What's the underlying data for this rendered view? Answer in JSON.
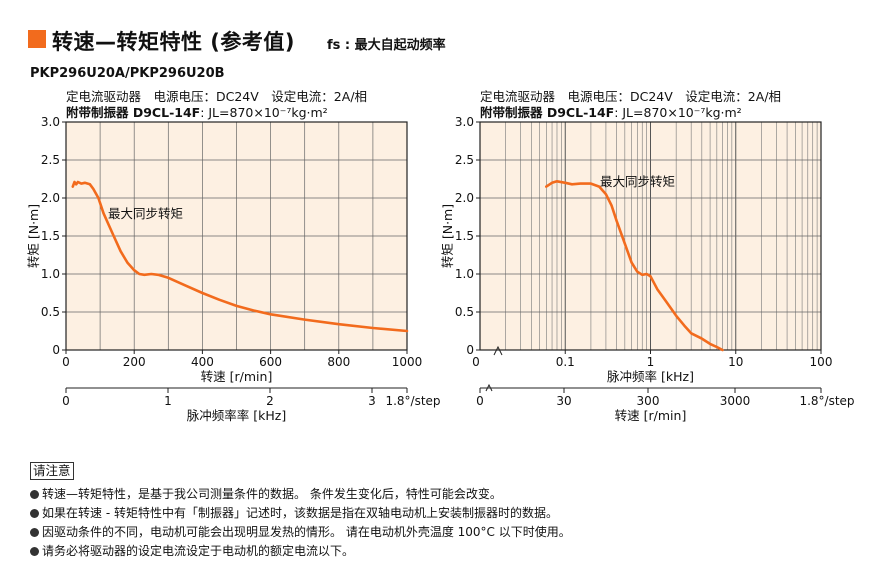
{
  "header": {
    "title": "转速—转矩特性 (参考值)",
    "subtitle": "fs : 最大自起动频率",
    "model": "PKP296U20A/PKP296U20B"
  },
  "conditions": {
    "line1": "定电流驱动器　电源电压：DC24V　设定电流：2A/相",
    "line2_bold": "附带制振器 D9CL-14F",
    "line2_rest": ":  JL=870×10⁻⁷kg·m²"
  },
  "notes": {
    "heading": "请注意",
    "items": [
      "转速—转矩特性，是基于我公司测量条件的数据。 条件发生变化后，特性可能会改变。",
      "如果在转速 - 转矩特性中有「制振器」记述时，该数据是指在双轴电动机上安装制振器时的数据。",
      "因驱动条件的不同，电动机可能会出现明显发热的情形。 请在电动机外壳温度 100°C 以下时使用。",
      "请务必将驱动器的设定电流设定于电动机的额定电流以下。"
    ]
  },
  "chart_data": [
    {
      "type": "line",
      "x_scale": "linear",
      "xlabel": "转速 [r/min]",
      "ylabel": "转矩 [N·m]",
      "xlim": [
        0,
        1000
      ],
      "ylim": [
        0,
        3.0
      ],
      "xticks": [
        0,
        200,
        400,
        600,
        800,
        1000
      ],
      "yticks": [
        0,
        0.5,
        1.0,
        1.5,
        2.0,
        2.5,
        3.0
      ],
      "ytick_labels": [
        "0",
        "0.5",
        "1.0",
        "1.5",
        "2.0",
        "2.5",
        "3.0"
      ],
      "secondary_axis": {
        "label": "脉冲频率率 [kHz]",
        "ticks": [
          0,
          1,
          2,
          3
        ],
        "unit_note": "1.8°/step"
      },
      "grid": true,
      "series": [
        {
          "name": "最大同步转矩",
          "color": "#f26b1d",
          "x": [
            20,
            25,
            30,
            35,
            45,
            55,
            70,
            80,
            95,
            110,
            125,
            140,
            160,
            180,
            200,
            215,
            230,
            250,
            270,
            300,
            350,
            400,
            450,
            500,
            550,
            600,
            700,
            800,
            900,
            1000
          ],
          "y": [
            2.15,
            2.21,
            2.18,
            2.21,
            2.19,
            2.2,
            2.18,
            2.12,
            2.0,
            1.8,
            1.65,
            1.5,
            1.3,
            1.15,
            1.05,
            1.0,
            0.99,
            1.0,
            0.99,
            0.95,
            0.85,
            0.75,
            0.66,
            0.58,
            0.52,
            0.47,
            0.4,
            0.34,
            0.29,
            0.25
          ]
        }
      ]
    },
    {
      "type": "line",
      "x_scale": "log",
      "xlabel": "脉冲频率 [kHz]",
      "ylabel": "转矩 [N·m]",
      "xlim": [
        0.01,
        100
      ],
      "ylim": [
        0,
        3.0
      ],
      "xticks": [
        0.1,
        1,
        10,
        100
      ],
      "xtick_labels": [
        "0.1",
        "1",
        "10",
        "100"
      ],
      "yticks": [
        0,
        0.5,
        1.0,
        1.5,
        2.0,
        2.5,
        3.0
      ],
      "ytick_labels": [
        "0",
        "0.5",
        "1.0",
        "1.5",
        "2.0",
        "2.5",
        "3.0"
      ],
      "secondary_axis": {
        "label": "转速 [r/min]",
        "ticks": [
          0,
          30,
          300,
          3000
        ],
        "unit_note": "1.8°/step"
      },
      "grid": true,
      "series": [
        {
          "name": "最大同步转矩",
          "color": "#f26b1d",
          "x": [
            0.06,
            0.07,
            0.08,
            0.1,
            0.12,
            0.15,
            0.2,
            0.25,
            0.3,
            0.35,
            0.4,
            0.5,
            0.6,
            0.7,
            0.8,
            0.9,
            1.0,
            1.2,
            1.5,
            2.0,
            2.5,
            3.0,
            4.0,
            5.0,
            6.0,
            7.0
          ],
          "y": [
            2.15,
            2.2,
            2.22,
            2.2,
            2.18,
            2.19,
            2.19,
            2.15,
            2.05,
            1.9,
            1.7,
            1.4,
            1.15,
            1.03,
            0.99,
            1.0,
            0.97,
            0.8,
            0.65,
            0.45,
            0.32,
            0.22,
            0.15,
            0.08,
            0.04,
            0.0
          ]
        }
      ]
    }
  ]
}
